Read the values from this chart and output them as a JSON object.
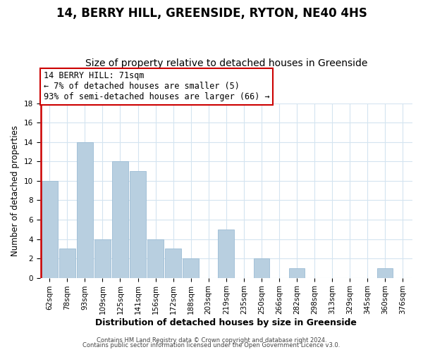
{
  "title": "14, BERRY HILL, GREENSIDE, RYTON, NE40 4HS",
  "subtitle": "Size of property relative to detached houses in Greenside",
  "xlabel": "Distribution of detached houses by size in Greenside",
  "ylabel": "Number of detached properties",
  "categories": [
    "62sqm",
    "78sqm",
    "93sqm",
    "109sqm",
    "125sqm",
    "141sqm",
    "156sqm",
    "172sqm",
    "188sqm",
    "203sqm",
    "219sqm",
    "235sqm",
    "250sqm",
    "266sqm",
    "282sqm",
    "298sqm",
    "313sqm",
    "329sqm",
    "345sqm",
    "360sqm",
    "376sqm"
  ],
  "values": [
    10,
    3,
    14,
    4,
    12,
    11,
    4,
    3,
    2,
    0,
    5,
    0,
    2,
    0,
    1,
    0,
    0,
    0,
    0,
    1,
    0
  ],
  "bar_color": "#b8cfe0",
  "bar_edge_color": "#9bbcd4",
  "annotation_title": "14 BERRY HILL: 71sqm",
  "annotation_line1": "← 7% of detached houses are smaller (5)",
  "annotation_line2": "93% of semi-detached houses are larger (66) →",
  "annotation_box_facecolor": "#ffffff",
  "annotation_box_edgecolor": "#cc0000",
  "red_line_color": "#cc0000",
  "ylim": [
    0,
    18
  ],
  "yticks": [
    0,
    2,
    4,
    6,
    8,
    10,
    12,
    14,
    16,
    18
  ],
  "footer1": "Contains HM Land Registry data © Crown copyright and database right 2024.",
  "footer2": "Contains public sector information licensed under the Open Government Licence v3.0.",
  "title_fontsize": 12,
  "subtitle_fontsize": 10,
  "xlabel_fontsize": 9,
  "ylabel_fontsize": 8.5,
  "tick_fontsize": 7.5,
  "grid_color": "#d4e4f0",
  "background_color": "#ffffff"
}
